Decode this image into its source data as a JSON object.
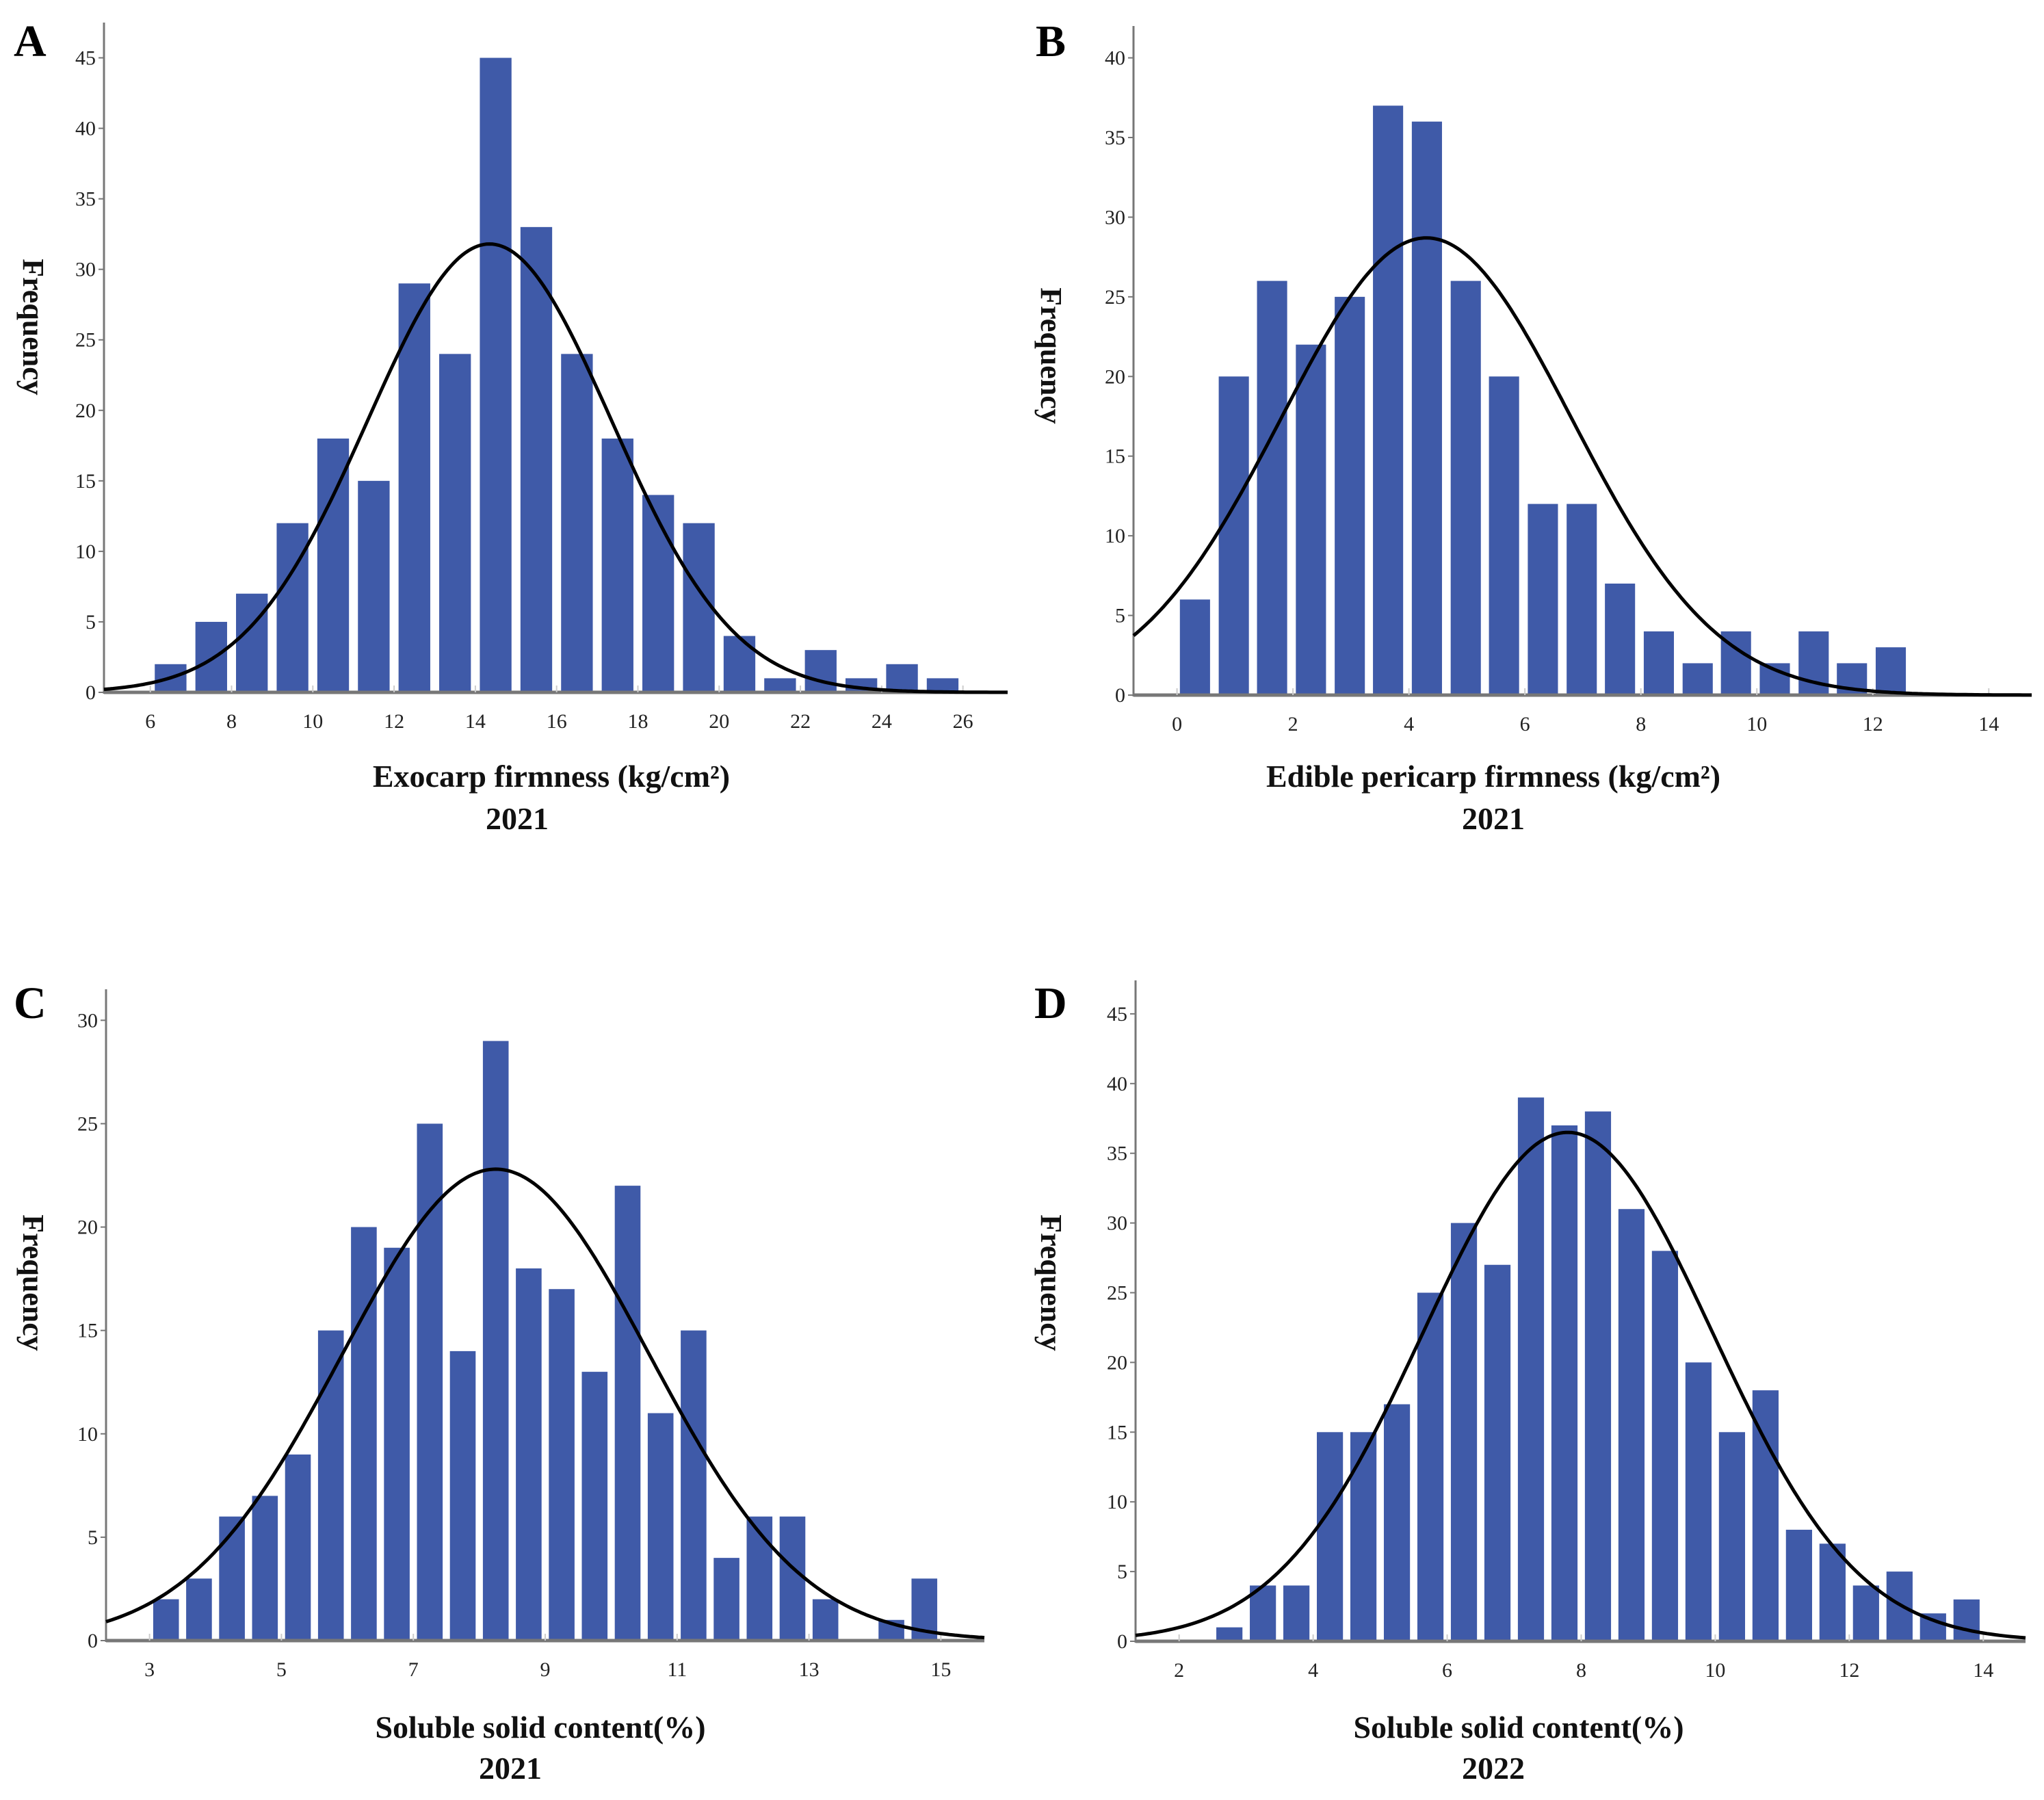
{
  "colors": {
    "bar": "#3f5aa8",
    "curve": "#000000",
    "axis": "#777777"
  },
  "chart_data": [
    {
      "panel": "A",
      "type": "bar",
      "subtype": "histogram-with-normal-curve",
      "xlabel": "Exocarp firmness (kg/cm²)",
      "year": "2021",
      "ylabel": "Frequency",
      "xlim": [
        4.86,
        27.1
      ],
      "ylim": [
        0,
        47.5
      ],
      "xticks": [
        6,
        8,
        10,
        12,
        14,
        16,
        18,
        20,
        22,
        24,
        26
      ],
      "yticks": [
        0,
        5,
        10,
        15,
        20,
        25,
        30,
        35,
        40,
        45
      ],
      "bin_width": 1,
      "bin_centers": [
        6.5,
        7.5,
        8.5,
        9.5,
        10.5,
        11.5,
        12.5,
        13.5,
        14.5,
        15.5,
        16.5,
        17.5,
        18.5,
        19.5,
        20.5,
        21.5,
        22.5,
        23.5,
        24.5,
        25.5
      ],
      "values": [
        2,
        5,
        7,
        12,
        18,
        15,
        29,
        24,
        45,
        33,
        24,
        18,
        14,
        12,
        4,
        1,
        3,
        1,
        2,
        1
      ],
      "normal_curve": {
        "mean": 14.35,
        "sd": 3.0,
        "peak": 31.8
      }
    },
    {
      "panel": "B",
      "type": "bar",
      "subtype": "histogram-with-normal-curve",
      "xlabel": "Edible pericarp firmness (kg/cm²)",
      "year": "2021",
      "ylabel": "Frequency",
      "xlim": [
        -0.75,
        14.74
      ],
      "ylim": [
        0,
        42
      ],
      "xticks": [
        0,
        2,
        4,
        6,
        8,
        10,
        12,
        14
      ],
      "yticks": [
        0,
        5,
        10,
        15,
        20,
        25,
        30,
        35,
        40
      ],
      "bin_width": 0.667,
      "bin_centers": [
        0.31,
        0.98,
        1.64,
        2.31,
        2.98,
        3.64,
        4.31,
        4.98,
        5.64,
        6.31,
        6.98,
        7.64,
        8.31,
        8.98,
        9.64,
        10.31,
        10.98,
        11.64,
        12.31
      ],
      "values": [
        6,
        20,
        26,
        22,
        25,
        37,
        36,
        26,
        20,
        12,
        12,
        7,
        4,
        2,
        4,
        2,
        4,
        2,
        3
      ],
      "normal_curve": {
        "mean": 4.3,
        "sd": 2.5,
        "peak": 28.7
      }
    },
    {
      "panel": "C",
      "type": "bar",
      "subtype": "histogram-with-normal-curve",
      "xlabel": "Soluble solid content(%)",
      "year": "2021",
      "ylabel": "Frequency",
      "xlim": [
        2.34,
        15.66
      ],
      "ylim": [
        0,
        31.5
      ],
      "xticks": [
        3,
        5,
        7,
        9,
        11,
        13,
        15
      ],
      "yticks": [
        0,
        5,
        10,
        15,
        20,
        25,
        30
      ],
      "bin_width": 0.5,
      "bin_centers": [
        3.25,
        3.75,
        4.25,
        4.75,
        5.25,
        5.75,
        6.25,
        6.75,
        7.25,
        7.75,
        8.25,
        8.75,
        9.25,
        9.75,
        10.25,
        10.75,
        11.25,
        11.75,
        12.25,
        12.75,
        13.25,
        13.75,
        14.25,
        14.75
      ],
      "values": [
        2,
        3,
        6,
        7,
        9,
        15,
        20,
        19,
        25,
        14,
        29,
        18,
        17,
        13,
        22,
        11,
        15,
        4,
        6,
        6,
        2,
        0,
        1,
        3
      ],
      "normal_curve": {
        "mean": 8.25,
        "sd": 2.33,
        "peak": 22.8
      }
    },
    {
      "panel": "D",
      "type": "bar",
      "subtype": "histogram-with-normal-curve",
      "xlabel": "Soluble solid content(%)",
      "year": "2022",
      "ylabel": "Frequency",
      "xlim": [
        1.35,
        14.63
      ],
      "ylim": [
        0,
        47.4
      ],
      "xticks": [
        2,
        4,
        6,
        8,
        10,
        12,
        14
      ],
      "yticks": [
        0,
        5,
        10,
        15,
        20,
        25,
        30,
        35,
        40,
        45
      ],
      "bin_width": 0.5,
      "bin_centers": [
        2.75,
        3.25,
        3.75,
        4.25,
        4.75,
        5.25,
        5.75,
        6.25,
        6.75,
        7.25,
        7.75,
        8.25,
        8.75,
        9.25,
        9.75,
        10.25,
        10.75,
        11.25,
        11.75,
        12.25,
        12.75,
        13.25,
        13.75
      ],
      "values": [
        1,
        4,
        4,
        15,
        15,
        17,
        25,
        30,
        27,
        39,
        37,
        38,
        31,
        28,
        20,
        15,
        18,
        8,
        7,
        4,
        5,
        2,
        3
      ],
      "normal_curve": {
        "mean": 7.8,
        "sd": 2.16,
        "peak": 36.5
      }
    }
  ]
}
